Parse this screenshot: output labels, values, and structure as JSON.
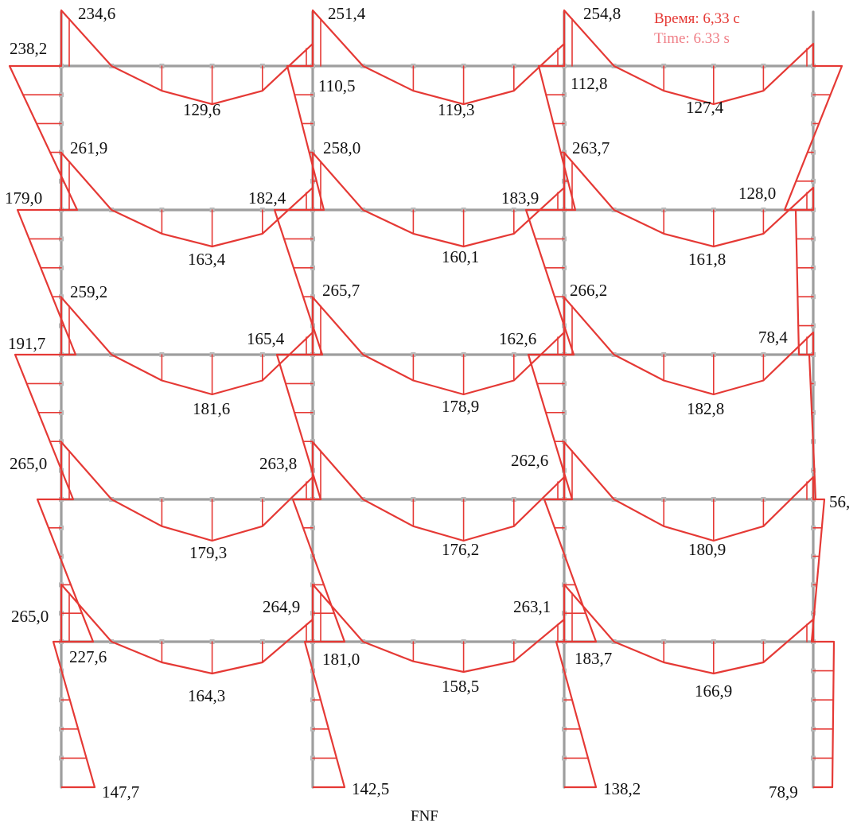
{
  "time_ru": "Время: 6,33 с",
  "time_en": "Time: 6.33 s",
  "caption": "FNF",
  "colors": {
    "frame": "#9e9e9e",
    "node": "#b8b8b8",
    "diagram": "#e53935",
    "text": "#111111"
  },
  "labels": {
    "r0c0": "234,6",
    "r0c1": "251,4",
    "r0c2": "254,8",
    "r0m0": "129,6",
    "r0m1": "119,3",
    "r0m2": "127,4",
    "l0": "238,2",
    "s01": "110,5",
    "s02": "112,8",
    "r1c0": "261,9",
    "r1c1": "258,0",
    "r1c2": "263,7",
    "r1m0": "163,4",
    "r1m1": "160,1",
    "r1m2": "161,8",
    "l1": "179,0",
    "s11": "182,4",
    "s12": "183,9",
    "e1": "128,0",
    "r2c0": "259,2",
    "r2c1": "265,7",
    "r2c2": "266,2",
    "r2m0": "181,6",
    "r2m1": "178,9",
    "r2m2": "182,8",
    "l2": "191,7",
    "s21": "165,4",
    "s22": "162,6",
    "e2": "78,4",
    "r3m0": "179,3",
    "r3m1": "176,2",
    "r3m2": "180,9",
    "l3": "265,0",
    "s31": "263,8",
    "s32": "262,6",
    "e3": "56,",
    "r4m0": "164,3",
    "r4m1": "158,5",
    "r4m2": "166,9",
    "l4": "265,0",
    "s41": "264,9",
    "s42": "263,1",
    "b0": "227,6",
    "b1": "181,0",
    "b2": "183,7",
    "f0": "147,7",
    "f1": "142,5",
    "f2": "138,2",
    "f3": "78,9"
  }
}
